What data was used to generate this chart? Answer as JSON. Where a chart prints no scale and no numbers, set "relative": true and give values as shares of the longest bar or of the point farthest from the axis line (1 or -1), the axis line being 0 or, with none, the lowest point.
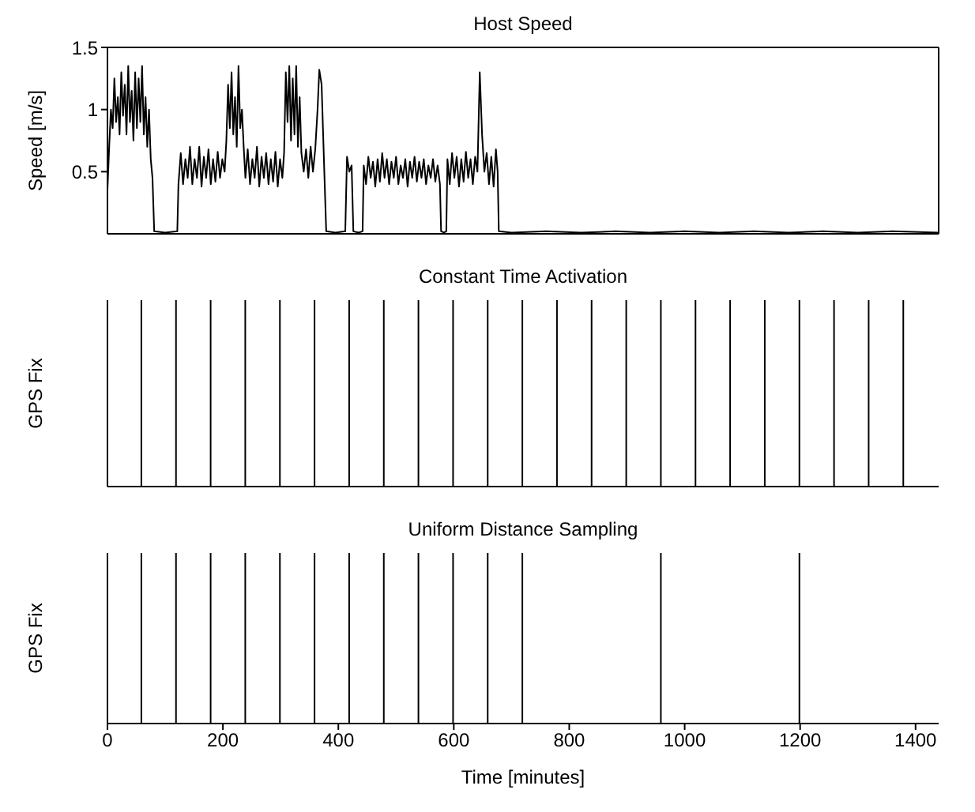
{
  "chart_data": [
    {
      "type": "line",
      "title": "Host Speed",
      "ylabel": "Speed [m/s]",
      "color": "#000000",
      "xlim": [
        0,
        1440
      ],
      "xticks": [
        0,
        200,
        400,
        600,
        800,
        1000,
        1200,
        1400
      ],
      "ylim": [
        0,
        1.5
      ],
      "yticks": [
        0.5,
        1,
        1.5
      ],
      "tick_labels": "y",
      "x": [
        0,
        3,
        6,
        9,
        12,
        15,
        18,
        21,
        24,
        27,
        30,
        33,
        36,
        39,
        42,
        45,
        48,
        51,
        54,
        57,
        60,
        63,
        66,
        69,
        72,
        75,
        78,
        81,
        100,
        121,
        123,
        127,
        131,
        135,
        139,
        143,
        147,
        151,
        155,
        159,
        163,
        167,
        171,
        175,
        179,
        183,
        187,
        191,
        195,
        199,
        203,
        206,
        209,
        212,
        215,
        218,
        221,
        224,
        227,
        230,
        233,
        236,
        239,
        243,
        247,
        251,
        255,
        259,
        263,
        267,
        271,
        275,
        279,
        283,
        287,
        291,
        295,
        299,
        303,
        306,
        309,
        312,
        315,
        318,
        321,
        324,
        327,
        330,
        333,
        336,
        340,
        344,
        348,
        352,
        356,
        360,
        364,
        367,
        371,
        375,
        379,
        395,
        412,
        415,
        419,
        423,
        426,
        435,
        442,
        444,
        448,
        452,
        456,
        460,
        464,
        468,
        472,
        476,
        480,
        484,
        488,
        492,
        496,
        500,
        504,
        508,
        512,
        516,
        520,
        524,
        528,
        532,
        536,
        540,
        544,
        548,
        552,
        556,
        560,
        564,
        568,
        572,
        576,
        578,
        583,
        587,
        589,
        593,
        597,
        601,
        605,
        609,
        613,
        617,
        621,
        625,
        629,
        633,
        637,
        641,
        645,
        649,
        653,
        657,
        661,
        665,
        669,
        673,
        676,
        678,
        700,
        760,
        820,
        880,
        940,
        1000,
        1060,
        1120,
        1180,
        1240,
        1300,
        1360,
        1440
      ],
      "values": [
        0.35,
        0.7,
        1.0,
        0.85,
        1.25,
        0.9,
        1.1,
        0.8,
        1.3,
        0.95,
        1.2,
        0.8,
        1.35,
        0.9,
        1.15,
        0.75,
        1.3,
        0.85,
        1.25,
        0.9,
        1.35,
        0.8,
        1.1,
        0.7,
        1.0,
        0.6,
        0.45,
        0.02,
        0.01,
        0.02,
        0.4,
        0.65,
        0.4,
        0.6,
        0.45,
        0.7,
        0.4,
        0.6,
        0.45,
        0.7,
        0.38,
        0.62,
        0.45,
        0.68,
        0.4,
        0.6,
        0.42,
        0.66,
        0.45,
        0.6,
        0.5,
        0.75,
        1.2,
        0.85,
        1.3,
        0.8,
        1.1,
        0.7,
        1.35,
        0.85,
        1.0,
        0.7,
        0.45,
        0.68,
        0.4,
        0.6,
        0.45,
        0.7,
        0.38,
        0.62,
        0.45,
        0.65,
        0.4,
        0.6,
        0.42,
        0.66,
        0.38,
        0.6,
        0.45,
        0.65,
        1.3,
        0.9,
        1.35,
        0.75,
        1.25,
        0.8,
        1.35,
        0.7,
        1.1,
        0.65,
        0.5,
        0.68,
        0.45,
        0.7,
        0.5,
        0.68,
        1.0,
        1.32,
        1.2,
        0.6,
        0.02,
        0.01,
        0.02,
        0.62,
        0.5,
        0.55,
        0.02,
        0.01,
        0.02,
        0.55,
        0.4,
        0.62,
        0.45,
        0.58,
        0.38,
        0.6,
        0.42,
        0.65,
        0.45,
        0.6,
        0.4,
        0.58,
        0.45,
        0.62,
        0.4,
        0.55,
        0.45,
        0.6,
        0.38,
        0.58,
        0.45,
        0.62,
        0.42,
        0.58,
        0.45,
        0.6,
        0.4,
        0.55,
        0.45,
        0.6,
        0.42,
        0.55,
        0.4,
        0.02,
        0.01,
        0.02,
        0.6,
        0.4,
        0.65,
        0.45,
        0.62,
        0.38,
        0.6,
        0.42,
        0.66,
        0.45,
        0.6,
        0.4,
        0.62,
        0.5,
        1.3,
        0.8,
        0.5,
        0.65,
        0.4,
        0.62,
        0.38,
        0.68,
        0.5,
        0.02,
        0.01,
        0.02,
        0.01,
        0.02,
        0.01,
        0.02,
        0.01,
        0.02,
        0.01,
        0.02,
        0.01,
        0.02,
        0.01
      ]
    },
    {
      "type": "bar",
      "title": "Constant Time Activation",
      "ylabel": "GPS Fix",
      "color": "#000000",
      "relative": true,
      "xlim": [
        0,
        1440
      ],
      "xticks": [
        0,
        200,
        400,
        600,
        800,
        1000,
        1200,
        1400
      ],
      "tick_labels": false,
      "x": [
        60,
        120,
        180,
        240,
        300,
        360,
        420,
        480,
        540,
        600,
        660,
        720,
        780,
        840,
        900,
        960,
        1020,
        1080,
        1140,
        1200,
        1260,
        1320,
        1380
      ],
      "values": [
        1,
        1,
        1,
        1,
        1,
        1,
        1,
        1,
        1,
        1,
        1,
        1,
        1,
        1,
        1,
        1,
        1,
        1,
        1,
        1,
        1,
        1,
        1
      ]
    },
    {
      "type": "bar",
      "title": "Uniform Distance Sampling",
      "ylabel": "GPS Fix",
      "xlabel": "Time [minutes]",
      "color": "#000000",
      "relative": true,
      "xlim": [
        0,
        1440
      ],
      "xticks": [
        0,
        200,
        400,
        600,
        800,
        1000,
        1200,
        1400
      ],
      "tick_labels": "x",
      "x": [
        60,
        120,
        180,
        240,
        300,
        360,
        420,
        480,
        540,
        600,
        660,
        720,
        960,
        1200
      ],
      "values": [
        1,
        1,
        1,
        1,
        1,
        1,
        1,
        1,
        1,
        1,
        1,
        1,
        1,
        1
      ]
    }
  ]
}
